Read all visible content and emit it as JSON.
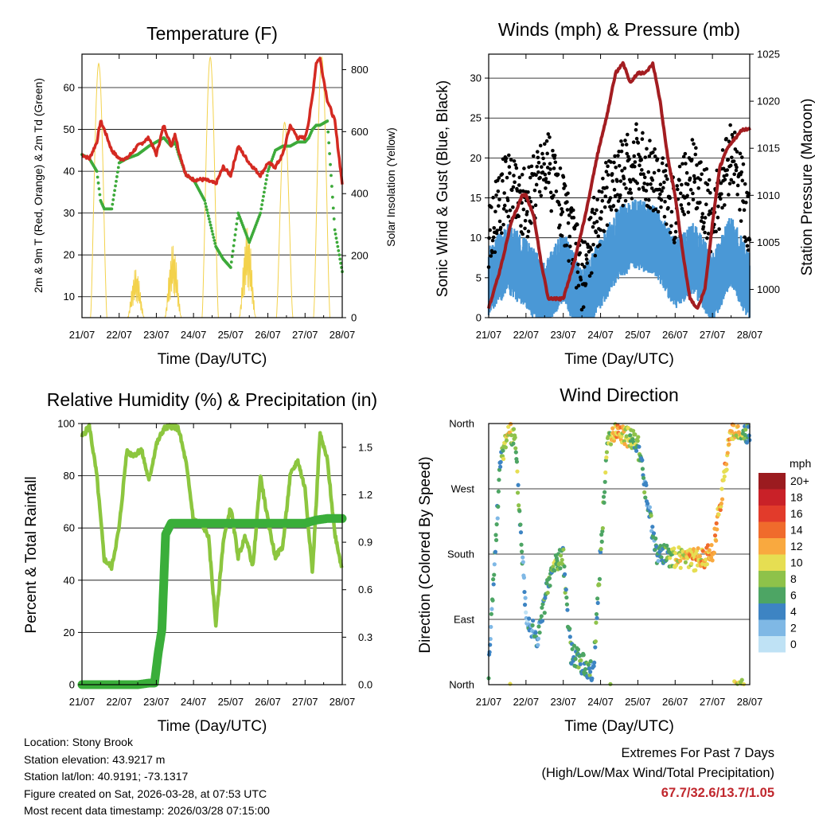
{
  "days": [
    "21/07",
    "22/07",
    "23/07",
    "24/07",
    "25/07",
    "26/07",
    "27/07",
    "28/07"
  ],
  "time_axis_label": "Time (Day/UTC)",
  "chart_data": [
    {
      "type": "line",
      "title": "Temperature (F)",
      "xlabel": "Time (Day/UTC)",
      "ylabel": "2m & 9m T (Red, Orange) & 2m Td (Green)",
      "y2label": "Solar Insolation (Yellow)",
      "ylim": [
        5,
        68
      ],
      "y2lim": [
        0,
        850
      ],
      "yticks": [
        10,
        20,
        30,
        40,
        50,
        60
      ],
      "y2ticks": [
        0,
        200,
        400,
        600,
        800
      ],
      "series": [
        {
          "name": "2m & 9m T",
          "color": "#d42a22",
          "x": [
            0,
            0.2,
            0.4,
            0.5,
            0.6,
            0.8,
            1.0,
            1.2,
            1.5,
            1.8,
            2.0,
            2.2,
            2.4,
            2.5,
            2.6,
            2.8,
            3.0,
            3.3,
            3.6,
            3.8,
            4.0,
            4.2,
            4.5,
            4.8,
            5.0,
            5.2,
            5.4,
            5.6,
            5.8,
            6.0,
            6.1,
            6.2,
            6.3,
            6.4,
            6.6,
            6.8,
            7.0
          ],
          "values": [
            44,
            43,
            47,
            52,
            50,
            45,
            43,
            43,
            46,
            48,
            44,
            51,
            46,
            49,
            45,
            39,
            38,
            38,
            37,
            41,
            39,
            46,
            42,
            39,
            42,
            41,
            44,
            51,
            48,
            48,
            52,
            58,
            66,
            67,
            57,
            52,
            37
          ]
        },
        {
          "name": "2m Td",
          "color": "#3daa3a",
          "x": [
            0,
            0.2,
            0.4,
            0.5,
            0.6,
            0.8,
            1.0,
            1.2,
            1.5,
            1.8,
            2.0,
            2.2,
            2.4,
            2.5,
            2.6,
            2.8,
            3.0,
            3.3,
            3.6,
            3.8,
            4.0,
            4.2,
            4.5,
            4.8,
            5.0,
            5.2,
            5.4,
            5.6,
            5.8,
            6.0,
            6.1,
            6.2,
            6.3,
            6.4,
            6.6,
            6.8,
            7.0
          ],
          "values": [
            44,
            43,
            40,
            33,
            31,
            31,
            42,
            43,
            44,
            46,
            47,
            48,
            46,
            47,
            44,
            39,
            38,
            33,
            22,
            19,
            17,
            30,
            23,
            30,
            40,
            45,
            46,
            46,
            47,
            47,
            48,
            50,
            51,
            51,
            52,
            26,
            16
          ]
        },
        {
          "name": "Solar Insolation",
          "axis": "y2",
          "color": "#f3d24c",
          "peak_x": [
            0.45,
            1.45,
            2.45,
            3.45,
            4.45,
            5.45,
            6.45
          ],
          "peak_values": [
            820,
            160,
            240,
            840,
            300,
            630,
            840
          ]
        }
      ]
    },
    {
      "type": "scatter",
      "title": "Winds (mph) & Pressure (mb)",
      "xlabel": "Time (Day/UTC)",
      "ylabel": "Sonic Wind & Gust (Blue, Black)",
      "y2label": "Station Pressure (Maroon)",
      "ylim": [
        0,
        33
      ],
      "y2lim": [
        997,
        1025
      ],
      "yticks": [
        0,
        5,
        10,
        15,
        20,
        25,
        30
      ],
      "y2ticks": [
        1000,
        1005,
        1010,
        1015,
        1020,
        1025
      ],
      "series": [
        {
          "name": "Sonic Wind",
          "color": "#4a98d6",
          "x": [
            0,
            0.5,
            1.0,
            1.5,
            2.0,
            2.5,
            3.0,
            3.5,
            4.0,
            4.5,
            5.0,
            5.5,
            6.0,
            6.5,
            7.0
          ],
          "values": [
            5,
            8,
            6,
            3,
            7,
            2,
            6,
            10,
            11,
            10,
            6,
            8,
            4,
            9,
            4
          ]
        },
        {
          "name": "Gust",
          "color": "#000000",
          "x": [
            0,
            0.5,
            1.0,
            1.5,
            2.0,
            2.5,
            3.0,
            3.5,
            4.0,
            4.5,
            5.0,
            5.5,
            6.0,
            6.5,
            7.0
          ],
          "values": [
            10,
            17,
            14,
            20,
            14,
            5,
            14,
            18,
            20,
            17,
            13,
            19,
            12,
            21,
            12
          ]
        },
        {
          "name": "Station Pressure",
          "axis": "y2",
          "color": "#a31d21",
          "x": [
            0,
            0.3,
            0.6,
            0.9,
            1.0,
            1.2,
            1.4,
            1.6,
            1.8,
            2.0,
            2.3,
            2.6,
            2.9,
            3.2,
            3.4,
            3.6,
            3.8,
            4.0,
            4.2,
            4.4,
            4.6,
            4.8,
            5.0,
            5.2,
            5.4,
            5.6,
            5.8,
            6.0,
            6.2,
            6.4,
            6.6,
            6.8,
            7.0
          ],
          "values": [
            998,
            1002,
            1007,
            1010,
            1010,
            1008,
            1003,
            999,
            999,
            999,
            1003,
            1008,
            1014,
            1019,
            1023,
            1024,
            1022,
            1023,
            1023,
            1024,
            1020,
            1014,
            1010,
            1004,
            999,
            998,
            1000,
            1007,
            1013,
            1015,
            1016,
            1017,
            1017
          ]
        }
      ]
    },
    {
      "type": "line",
      "title": "Relative Humidity (%) & Precipitation (in)",
      "xlabel": "Time (Day/UTC)",
      "ylabel": "Percent & Total Rainfall",
      "ylim": [
        0,
        100
      ],
      "y2lim": [
        0,
        1.65
      ],
      "yticks": [
        0,
        20,
        40,
        60,
        80,
        100
      ],
      "y2ticks": [
        "0.0",
        "0.3",
        "0.6",
        "0.9",
        "1.2",
        "1.5"
      ],
      "series": [
        {
          "name": "Relative Humidity",
          "color": "#8cc63f",
          "x": [
            0,
            0.2,
            0.4,
            0.6,
            0.8,
            1.0,
            1.2,
            1.4,
            1.6,
            1.8,
            2.0,
            2.2,
            2.4,
            2.6,
            2.8,
            3.0,
            3.2,
            3.4,
            3.6,
            3.8,
            4.0,
            4.2,
            4.4,
            4.6,
            4.8,
            5.0,
            5.2,
            5.4,
            5.6,
            5.8,
            6.0,
            6.2,
            6.4,
            6.6,
            6.8,
            7.0
          ],
          "values": [
            95,
            99,
            80,
            48,
            45,
            60,
            89,
            88,
            90,
            78,
            92,
            98,
            99,
            98,
            85,
            63,
            62,
            57,
            23,
            55,
            68,
            49,
            57,
            45,
            80,
            63,
            49,
            53,
            80,
            86,
            75,
            43,
            96,
            86,
            58,
            44
          ]
        },
        {
          "name": "Total Precipitation",
          "axis": "y2",
          "color": "#3aae3a",
          "x": [
            0,
            1.5,
            1.8,
            1.95,
            2.05,
            2.15,
            2.25,
            2.4,
            3.0,
            4.0,
            5.0,
            5.7,
            6.0,
            6.3,
            6.6,
            7.0
          ],
          "values": [
            0,
            0,
            0.01,
            0.01,
            0.2,
            0.35,
            0.95,
            1.02,
            1.02,
            1.02,
            1.02,
            1.02,
            1.02,
            1.04,
            1.05,
            1.05
          ]
        }
      ]
    },
    {
      "type": "scatter",
      "title": "Wind Direction",
      "xlabel": "Time (Day/UTC)",
      "ylabel": "Direction (Colored By Speed)",
      "yticks": [
        "North",
        "East",
        "South",
        "West",
        "North"
      ],
      "ydirs_deg": [
        0,
        90,
        180,
        270,
        360
      ],
      "colorbar": {
        "unit": "mph",
        "labels": [
          "20+",
          "18",
          "16",
          "14",
          "12",
          "10",
          "8",
          "6",
          "4",
          "2",
          "0"
        ],
        "colors": [
          "#9b1b1f",
          "#c92128",
          "#e23b2b",
          "#f06b2c",
          "#f9a93f",
          "#e6de52",
          "#8ec24a",
          "#4da564",
          "#3d84c3",
          "#7fb8e5",
          "#bfe2f5"
        ]
      },
      "series": [
        {
          "name": "Direction",
          "x": [
            0,
            0.3,
            0.5,
            0.7,
            1.0,
            1.3,
            1.6,
            1.8,
            2.0,
            2.2,
            2.5,
            2.8,
            3.2,
            3.5,
            4.0,
            4.5,
            5.0,
            5.5,
            6.0,
            6.5,
            6.8,
            7.0
          ],
          "values": [
            20,
            300,
            350,
            340,
            100,
            60,
            140,
            170,
            175,
            45,
            30,
            15,
            345,
            350,
            330,
            180,
            175,
            172,
            180,
            350,
            355,
            340
          ],
          "speeds": [
            4,
            5,
            10,
            8,
            3,
            4,
            6,
            8,
            7,
            5,
            6,
            5,
            8,
            12,
            6,
            4,
            9,
            11,
            12,
            12,
            8,
            4
          ]
        }
      ]
    }
  ],
  "info": {
    "location": "Location: Stony Brook",
    "elevation": "Station elevation: 43.9217 m",
    "latlon": "Station lat/lon: 40.9191; -73.1317",
    "created": "Figure created on Sat, 2026-03-28, at 07:53 UTC",
    "recent": "Most recent data timestamp: 2026/03/28 07:15:00"
  },
  "extremes": {
    "line1": "Extremes For Past 7 Days",
    "line2": "(High/Low/Max Wind/Total Precipitation)",
    "values": "67.7/32.6/13.7/1.05"
  }
}
